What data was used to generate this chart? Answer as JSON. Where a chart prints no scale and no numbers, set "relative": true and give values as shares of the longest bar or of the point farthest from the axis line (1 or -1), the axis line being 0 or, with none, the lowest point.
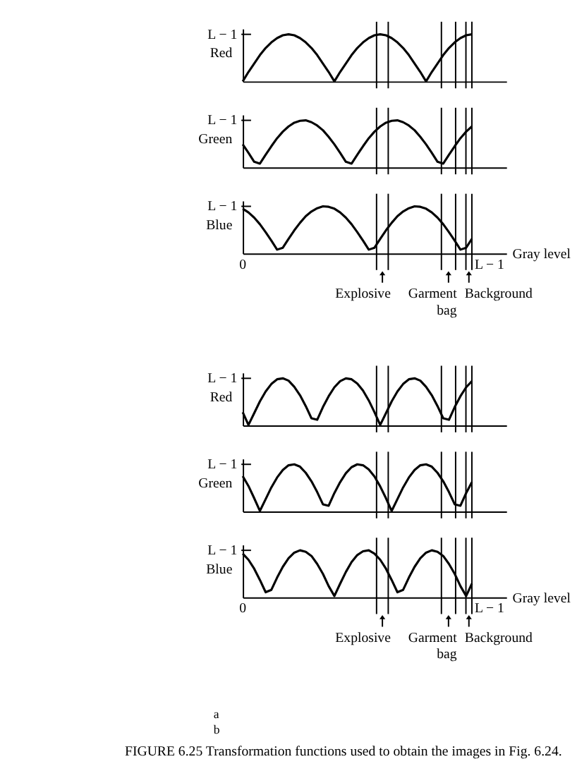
{
  "chart_data": [
    {
      "type": "line",
      "relative": true,
      "ylabel": "Red",
      "annotations": [
        "L − 1"
      ],
      "categories": [
        null,
        null,
        null,
        null,
        null,
        null,
        null,
        null,
        null,
        null,
        null,
        null,
        null,
        null,
        null,
        null,
        null,
        null,
        null,
        null,
        null,
        null,
        null,
        null,
        null,
        null,
        null,
        null,
        null,
        null,
        null,
        null,
        null,
        null,
        null,
        null,
        null,
        null,
        null,
        null,
        null
      ],
      "series": [
        {
          "color": "#000000",
          "values": [
            0,
            0.2,
            0.38,
            0.56,
            0.71,
            0.83,
            0.92,
            0.98,
            1,
            0.98,
            0.92,
            0.83,
            0.71,
            0.56,
            0.38,
            0.2,
            0,
            0.2,
            0.38,
            0.56,
            0.71,
            0.83,
            0.92,
            0.98,
            1,
            0.98,
            0.92,
            0.83,
            0.71,
            0.56,
            0.38,
            0.2,
            0,
            0.2,
            0.38,
            0.56,
            0.71,
            0.83,
            0.92,
            0.98,
            1
          ]
        }
      ]
    },
    {
      "type": "line",
      "relative": true,
      "ylabel": "Green",
      "annotations": [
        "L − 1"
      ],
      "categories": [
        null,
        null,
        null,
        null,
        null,
        null,
        null,
        null,
        null,
        null,
        null,
        null,
        null,
        null,
        null,
        null,
        null,
        null,
        null,
        null,
        null,
        null,
        null,
        null,
        null,
        null,
        null,
        null,
        null,
        null,
        null,
        null,
        null,
        null,
        null,
        null,
        null,
        null,
        null,
        null,
        null
      ],
      "series": [
        {
          "color": "#000000",
          "values": [
            0.49,
            0.31,
            0.12,
            0.08,
            0.27,
            0.45,
            0.62,
            0.76,
            0.87,
            0.95,
            0.99,
            1,
            0.96,
            0.89,
            0.79,
            0.65,
            0.49,
            0.31,
            0.12,
            0.08,
            0.27,
            0.45,
            0.62,
            0.76,
            0.87,
            0.95,
            0.99,
            1,
            0.96,
            0.89,
            0.79,
            0.65,
            0.49,
            0.31,
            0.12,
            0.08,
            0.27,
            0.45,
            0.62,
            0.76,
            0.87
          ]
        }
      ]
    },
    {
      "type": "line",
      "relative": true,
      "ylabel": "Blue",
      "xlabel": "Gray level",
      "annotations": [
        "L − 1",
        "0",
        "L − 1",
        "Explosive",
        "Garment bag",
        "Background"
      ],
      "categories": [
        null,
        null,
        null,
        null,
        null,
        null,
        null,
        null,
        null,
        null,
        null,
        null,
        null,
        null,
        null,
        null,
        null,
        null,
        null,
        null,
        null,
        null,
        null,
        null,
        null,
        null,
        null,
        null,
        null,
        null,
        null,
        null,
        null,
        null,
        null,
        null,
        null,
        null,
        null,
        null,
        null
      ],
      "series": [
        {
          "color": "#000000",
          "values": [
            0.95,
            0.87,
            0.76,
            0.62,
            0.45,
            0.27,
            0.08,
            0.12,
            0.31,
            0.49,
            0.65,
            0.79,
            0.89,
            0.96,
            1,
            0.99,
            0.95,
            0.87,
            0.76,
            0.62,
            0.45,
            0.27,
            0.08,
            0.12,
            0.31,
            0.49,
            0.65,
            0.79,
            0.89,
            0.96,
            1,
            0.99,
            0.95,
            0.87,
            0.76,
            0.62,
            0.45,
            0.27,
            0.08,
            0.12,
            0.31
          ]
        }
      ]
    },
    {
      "type": "line",
      "relative": true,
      "ylabel": "Red",
      "annotations": [
        "L − 1"
      ],
      "categories": [
        null,
        null,
        null,
        null,
        null,
        null,
        null,
        null,
        null,
        null,
        null,
        null,
        null,
        null,
        null,
        null,
        null,
        null,
        null,
        null,
        null,
        null,
        null,
        null,
        null,
        null,
        null,
        null,
        null,
        null,
        null,
        null,
        null,
        null,
        null,
        null,
        null,
        null,
        null,
        null,
        null
      ],
      "series": [
        {
          "color": "#000000",
          "values": [
            0.28,
            0.01,
            0.26,
            0.51,
            0.72,
            0.88,
            0.98,
            1,
            0.95,
            0.82,
            0.64,
            0.41,
            0.15,
            0.12,
            0.39,
            0.62,
            0.81,
            0.94,
            1,
            0.98,
            0.89,
            0.74,
            0.53,
            0.28,
            0.01,
            0.26,
            0.51,
            0.72,
            0.88,
            0.98,
            1,
            0.95,
            0.82,
            0.64,
            0.41,
            0.15,
            0.12,
            0.39,
            0.62,
            0.81,
            0.94
          ]
        }
      ]
    },
    {
      "type": "line",
      "relative": true,
      "ylabel": "Green",
      "annotations": [
        "L − 1"
      ],
      "categories": [
        null,
        null,
        null,
        null,
        null,
        null,
        null,
        null,
        null,
        null,
        null,
        null,
        null,
        null,
        null,
        null,
        null,
        null,
        null,
        null,
        null,
        null,
        null,
        null,
        null,
        null,
        null,
        null,
        null,
        null,
        null,
        null,
        null,
        null,
        null,
        null,
        null,
        null,
        null,
        null,
        null
      ],
      "series": [
        {
          "color": "#000000",
          "values": [
            0.75,
            0.54,
            0.28,
            0.01,
            0.26,
            0.51,
            0.72,
            0.88,
            0.98,
            1,
            0.95,
            0.82,
            0.64,
            0.41,
            0.15,
            0.12,
            0.39,
            0.62,
            0.81,
            0.94,
            1,
            0.98,
            0.89,
            0.74,
            0.53,
            0.28,
            0.01,
            0.26,
            0.51,
            0.72,
            0.88,
            0.98,
            1,
            0.95,
            0.82,
            0.64,
            0.41,
            0.15,
            0.12,
            0.39,
            0.62
          ]
        }
      ]
    },
    {
      "type": "line",
      "relative": true,
      "ylabel": "Blue",
      "xlabel": "Gray level",
      "annotations": [
        "L − 1",
        "0",
        "L − 1",
        "Explosive",
        "Garment bag",
        "Background",
        "a",
        "b",
        "FIGURE 6.25  Transformation functions used to obtain the images in Fig. 6.24."
      ],
      "categories": [
        null,
        null,
        null,
        null,
        null,
        null,
        null,
        null,
        null,
        null,
        null,
        null,
        null,
        null,
        null,
        null,
        null,
        null,
        null,
        null,
        null,
        null,
        null,
        null,
        null,
        null,
        null,
        null,
        null,
        null,
        null,
        null,
        null,
        null,
        null,
        null,
        null,
        null,
        null,
        null,
        null
      ],
      "series": [
        {
          "color": "#000000",
          "values": [
            0.93,
            0.8,
            0.61,
            0.37,
            0.11,
            0.16,
            0.42,
            0.65,
            0.83,
            0.95,
            1,
            0.97,
            0.88,
            0.71,
            0.5,
            0.24,
            0.03,
            0.29,
            0.54,
            0.75,
            0.9,
            0.98,
            1,
            0.93,
            0.8,
            0.61,
            0.37,
            0.11,
            0.16,
            0.42,
            0.65,
            0.83,
            0.95,
            1,
            0.97,
            0.88,
            0.71,
            0.5,
            0.24,
            0.03,
            0.29
          ]
        }
      ]
    }
  ]
}
